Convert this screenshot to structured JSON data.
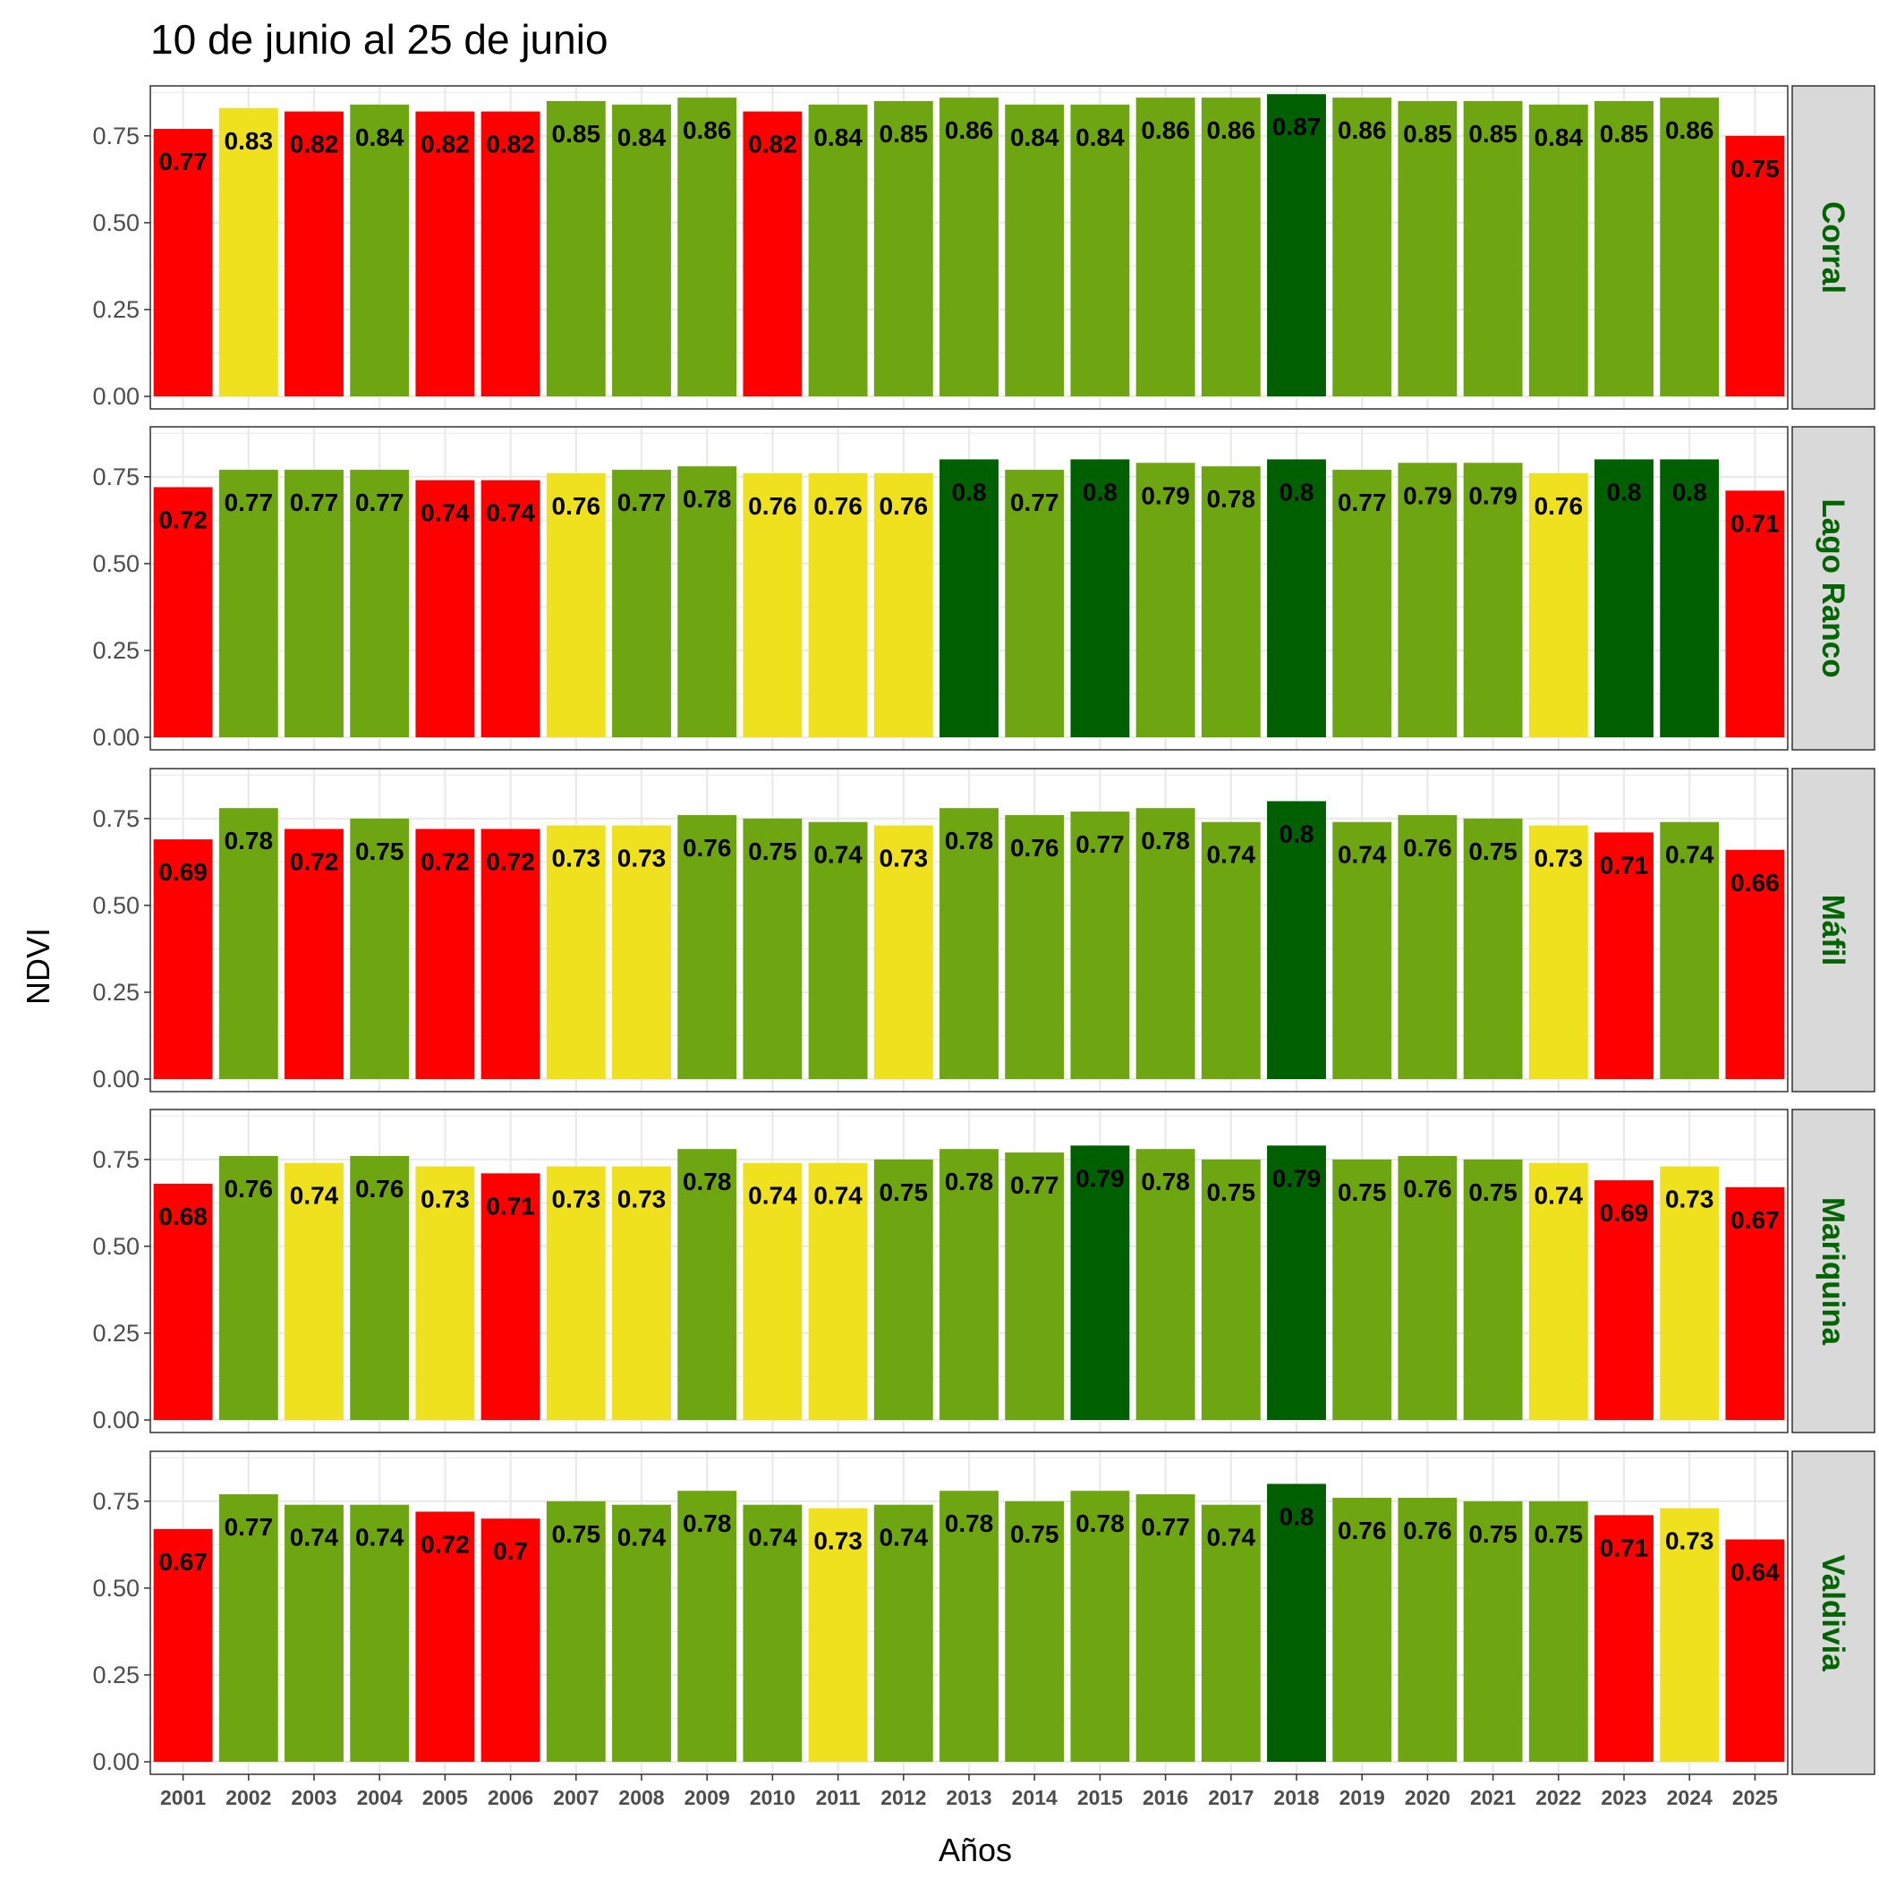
{
  "chart_data": {
    "type": "bar",
    "title": "10 de junio al 25 de junio",
    "xlabel": "Años",
    "ylabel": "NDVI",
    "ylim": [
      0,
      0.9
    ],
    "yticks": [
      "0.00",
      "0.25",
      "0.50",
      "0.75"
    ],
    "categories": [
      "2001",
      "2002",
      "2003",
      "2004",
      "2005",
      "2006",
      "2007",
      "2008",
      "2009",
      "2010",
      "2011",
      "2012",
      "2013",
      "2014",
      "2015",
      "2016",
      "2017",
      "2018",
      "2019",
      "2020",
      "2021",
      "2022",
      "2023",
      "2024",
      "2025"
    ],
    "grid": true,
    "colors": {
      "red": "#ff0000",
      "yellow": "#f0e11e",
      "green": "#6ea611",
      "darkgreen": "#006000",
      "strip_bg": "#d9d9d9",
      "strip_text": "#006400",
      "grid": "#ebebeb"
    },
    "panels": [
      {
        "name": "Corral",
        "values": [
          0.77,
          0.83,
          0.82,
          0.84,
          0.82,
          0.82,
          0.85,
          0.84,
          0.86,
          0.82,
          0.84,
          0.85,
          0.86,
          0.84,
          0.84,
          0.86,
          0.86,
          0.87,
          0.86,
          0.85,
          0.85,
          0.84,
          0.85,
          0.86,
          0.75
        ],
        "labels": [
          "0.77",
          "0.83",
          "0.82",
          "0.84",
          "0.82",
          "0.82",
          "0.85",
          "0.84",
          "0.86",
          "0.82",
          "0.84",
          "0.85",
          "0.86",
          "0.84",
          "0.84",
          "0.86",
          "0.86",
          "0.87",
          "0.86",
          "0.85",
          "0.85",
          "0.84",
          "0.85",
          "0.86",
          "0.75"
        ],
        "classes": [
          "red",
          "yellow",
          "red",
          "green",
          "red",
          "red",
          "green",
          "green",
          "green",
          "red",
          "green",
          "green",
          "green",
          "green",
          "green",
          "green",
          "green",
          "darkgreen",
          "green",
          "green",
          "green",
          "green",
          "green",
          "green",
          "red"
        ]
      },
      {
        "name": "Lago Ranco",
        "values": [
          0.72,
          0.77,
          0.77,
          0.77,
          0.74,
          0.74,
          0.76,
          0.77,
          0.78,
          0.76,
          0.76,
          0.76,
          0.8,
          0.77,
          0.8,
          0.79,
          0.78,
          0.8,
          0.77,
          0.79,
          0.79,
          0.76,
          0.8,
          0.8,
          0.71
        ],
        "labels": [
          "0.72",
          "0.77",
          "0.77",
          "0.77",
          "0.74",
          "0.74",
          "0.76",
          "0.77",
          "0.78",
          "0.76",
          "0.76",
          "0.76",
          "0.8",
          "0.77",
          "0.8",
          "0.79",
          "0.78",
          "0.8",
          "0.77",
          "0.79",
          "0.79",
          "0.76",
          "0.8",
          "0.8",
          "0.71"
        ],
        "classes": [
          "red",
          "green",
          "green",
          "green",
          "red",
          "red",
          "yellow",
          "green",
          "green",
          "yellow",
          "yellow",
          "yellow",
          "darkgreen",
          "green",
          "darkgreen",
          "green",
          "green",
          "darkgreen",
          "green",
          "green",
          "green",
          "yellow",
          "darkgreen",
          "darkgreen",
          "red"
        ]
      },
      {
        "name": "Máfil",
        "values": [
          0.69,
          0.78,
          0.72,
          0.75,
          0.72,
          0.72,
          0.73,
          0.73,
          0.76,
          0.75,
          0.74,
          0.73,
          0.78,
          0.76,
          0.77,
          0.78,
          0.74,
          0.8,
          0.74,
          0.76,
          0.75,
          0.73,
          0.71,
          0.74,
          0.66
        ],
        "labels": [
          "0.69",
          "0.78",
          "0.72",
          "0.75",
          "0.72",
          "0.72",
          "0.73",
          "0.73",
          "0.76",
          "0.75",
          "0.74",
          "0.73",
          "0.78",
          "0.76",
          "0.77",
          "0.78",
          "0.74",
          "0.8",
          "0.74",
          "0.76",
          "0.75",
          "0.73",
          "0.71",
          "0.74",
          "0.66"
        ],
        "classes": [
          "red",
          "green",
          "red",
          "green",
          "red",
          "red",
          "yellow",
          "yellow",
          "green",
          "green",
          "green",
          "yellow",
          "green",
          "green",
          "green",
          "green",
          "green",
          "darkgreen",
          "green",
          "green",
          "green",
          "yellow",
          "red",
          "green",
          "red"
        ]
      },
      {
        "name": "Mariquina",
        "values": [
          0.68,
          0.76,
          0.74,
          0.76,
          0.73,
          0.71,
          0.73,
          0.73,
          0.78,
          0.74,
          0.74,
          0.75,
          0.78,
          0.77,
          0.79,
          0.78,
          0.75,
          0.79,
          0.75,
          0.76,
          0.75,
          0.74,
          0.69,
          0.73,
          0.67
        ],
        "labels": [
          "0.68",
          "0.76",
          "0.74",
          "0.76",
          "0.73",
          "0.71",
          "0.73",
          "0.73",
          "0.78",
          "0.74",
          "0.74",
          "0.75",
          "0.78",
          "0.77",
          "0.79",
          "0.78",
          "0.75",
          "0.79",
          "0.75",
          "0.76",
          "0.75",
          "0.74",
          "0.69",
          "0.73",
          "0.67"
        ],
        "classes": [
          "red",
          "green",
          "yellow",
          "green",
          "yellow",
          "red",
          "yellow",
          "yellow",
          "green",
          "yellow",
          "yellow",
          "green",
          "green",
          "green",
          "darkgreen",
          "green",
          "green",
          "darkgreen",
          "green",
          "green",
          "green",
          "yellow",
          "red",
          "yellow",
          "red"
        ]
      },
      {
        "name": "Valdivia",
        "values": [
          0.67,
          0.77,
          0.74,
          0.74,
          0.72,
          0.7,
          0.75,
          0.74,
          0.78,
          0.74,
          0.73,
          0.74,
          0.78,
          0.75,
          0.78,
          0.77,
          0.74,
          0.8,
          0.76,
          0.76,
          0.75,
          0.75,
          0.71,
          0.73,
          0.64
        ],
        "labels": [
          "0.67",
          "0.77",
          "0.74",
          "0.74",
          "0.72",
          "0.7",
          "0.75",
          "0.74",
          "0.78",
          "0.74",
          "0.73",
          "0.74",
          "0.78",
          "0.75",
          "0.78",
          "0.77",
          "0.74",
          "0.8",
          "0.76",
          "0.76",
          "0.75",
          "0.75",
          "0.71",
          "0.73",
          "0.64"
        ],
        "classes": [
          "red",
          "green",
          "green",
          "green",
          "red",
          "red",
          "green",
          "green",
          "green",
          "green",
          "yellow",
          "green",
          "green",
          "green",
          "green",
          "green",
          "green",
          "darkgreen",
          "green",
          "green",
          "green",
          "green",
          "red",
          "yellow",
          "red"
        ]
      }
    ]
  }
}
